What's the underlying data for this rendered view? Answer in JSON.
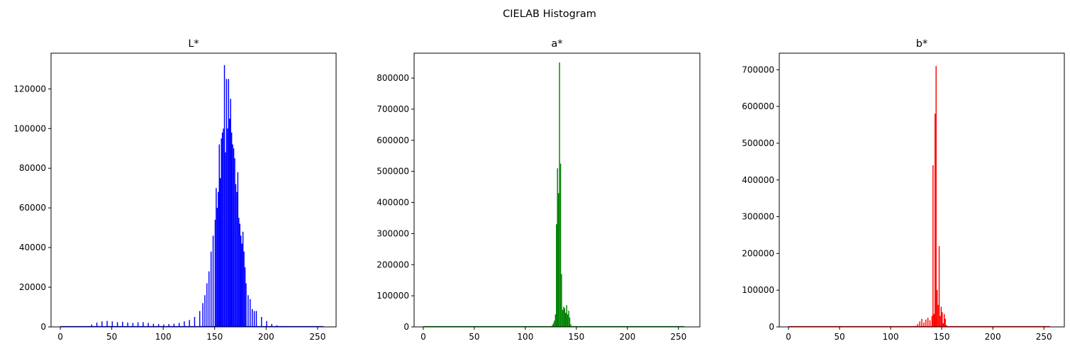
{
  "figure": {
    "suptitle": "CIELAB Histogram"
  },
  "chart_data": [
    {
      "type": "bar",
      "title": "L*",
      "color": "#0000ff",
      "xlim": [
        -9,
        268
      ],
      "ylim": [
        0,
        138000
      ],
      "xticks": [
        0,
        50,
        100,
        150,
        200,
        250
      ],
      "yticks": [
        0,
        20000,
        40000,
        60000,
        80000,
        100000,
        120000
      ],
      "x": [
        25,
        30,
        35,
        40,
        45,
        50,
        55,
        60,
        65,
        70,
        75,
        80,
        85,
        90,
        95,
        100,
        105,
        110,
        115,
        120,
        125,
        130,
        135,
        138,
        140,
        142,
        144,
        146,
        148,
        150,
        151,
        152,
        153,
        154,
        155,
        156,
        157,
        158,
        159,
        160,
        161,
        162,
        163,
        164,
        165,
        166,
        167,
        168,
        169,
        170,
        171,
        172,
        173,
        174,
        175,
        176,
        177,
        178,
        179,
        180,
        182,
        184,
        186,
        188,
        190,
        195,
        200,
        205,
        210,
        215,
        220,
        230,
        240,
        250,
        255
      ],
      "values": [
        300,
        1200,
        2200,
        2800,
        3000,
        2800,
        2400,
        2600,
        2200,
        2000,
        2300,
        2400,
        2000,
        1600,
        1400,
        1200,
        1400,
        1600,
        2000,
        2800,
        3500,
        5000,
        8000,
        12000,
        16000,
        22000,
        28000,
        38000,
        46000,
        54000,
        70000,
        60000,
        68000,
        92000,
        75000,
        95000,
        98000,
        100000,
        132000,
        88000,
        125000,
        100000,
        125000,
        105000,
        115000,
        98000,
        92000,
        90000,
        85000,
        72000,
        68000,
        78000,
        55000,
        52000,
        46000,
        42000,
        48000,
        38000,
        30000,
        22000,
        16000,
        14000,
        9000,
        8000,
        8000,
        5000,
        3000,
        1500,
        800,
        400,
        200,
        150,
        100,
        80,
        300
      ]
    },
    {
      "type": "bar",
      "title": "a*",
      "color": "#008000",
      "xlim": [
        -9,
        271
      ],
      "ylim": [
        0,
        880000
      ],
      "xticks": [
        0,
        50,
        100,
        150,
        200,
        250
      ],
      "yticks": [
        0,
        100000,
        200000,
        300000,
        400000,
        500000,
        600000,
        700000,
        800000
      ],
      "x": [
        0,
        120,
        124,
        126,
        127,
        128,
        129,
        130,
        131,
        132,
        133,
        134,
        135,
        136,
        137,
        138,
        139,
        140,
        141,
        142,
        143,
        144,
        145,
        146,
        148
      ],
      "values": [
        400,
        600,
        2000,
        6000,
        12000,
        20000,
        40000,
        330000,
        510000,
        430000,
        850000,
        525000,
        170000,
        55000,
        65000,
        60000,
        45000,
        70000,
        40000,
        52000,
        30000,
        8000,
        2000,
        1000,
        300
      ]
    },
    {
      "type": "bar",
      "title": "b*",
      "color": "#ff0000",
      "xlim": [
        -9,
        270
      ],
      "ylim": [
        0,
        745000
      ],
      "xticks": [
        0,
        50,
        100,
        150,
        200,
        250
      ],
      "yticks": [
        0,
        100000,
        200000,
        300000,
        400000,
        500000,
        600000,
        700000
      ],
      "x": [
        0,
        110,
        124,
        126,
        128,
        130,
        132,
        134,
        136,
        138,
        140,
        141,
        142,
        143,
        144,
        145,
        146,
        147,
        148,
        149,
        150,
        151,
        152,
        153,
        154,
        156
      ],
      "values": [
        400,
        500,
        3000,
        8000,
        15000,
        22000,
        12000,
        20000,
        25000,
        18000,
        30000,
        440000,
        35000,
        580000,
        710000,
        100000,
        60000,
        220000,
        30000,
        55000,
        40000,
        10000,
        35000,
        22000,
        5000,
        800
      ]
    }
  ]
}
